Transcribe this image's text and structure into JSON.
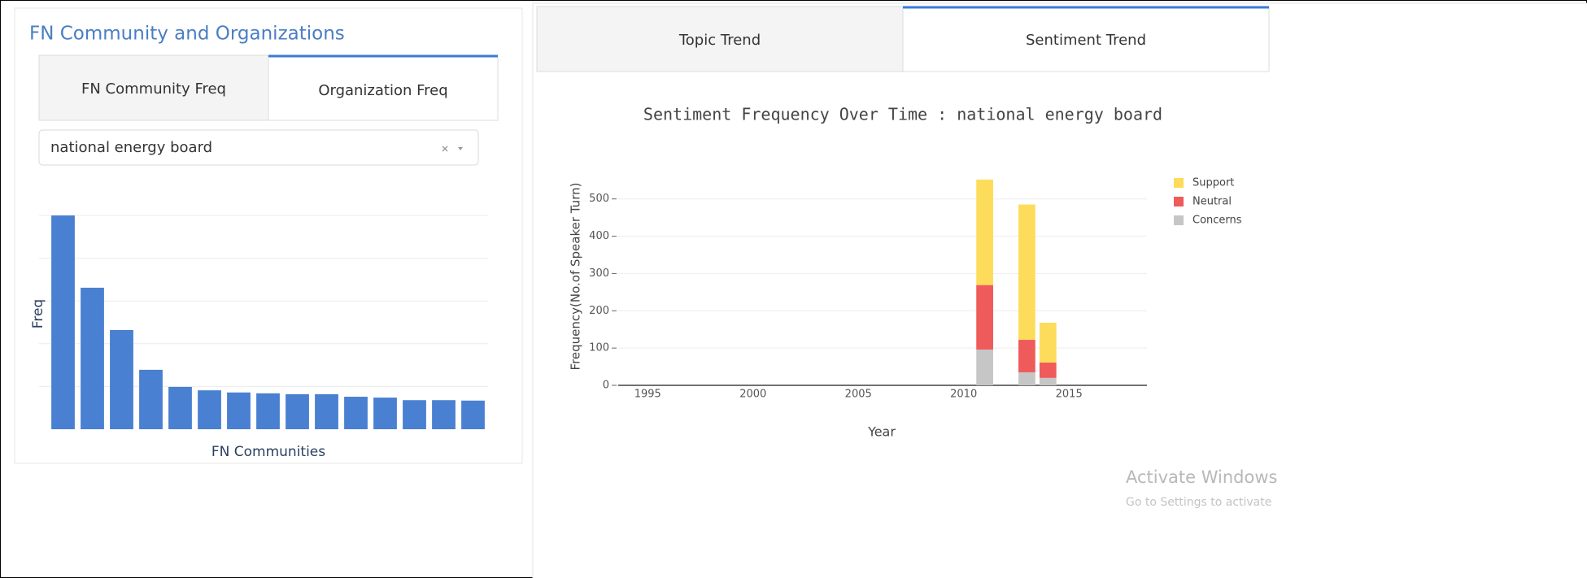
{
  "left_panel": {
    "title": "FN Community and Organizations",
    "tabs": [
      "FN Community Freq",
      "Organization Freq"
    ],
    "dropdown": {
      "value": "national energy board"
    }
  },
  "right_panel": {
    "tabs": [
      "Topic Trend",
      "Sentiment Trend"
    ]
  },
  "watermark": {
    "title": "Activate Windows",
    "subtitle": "Go to Settings to activate"
  },
  "chart_data": [
    {
      "type": "bar",
      "xlabel": "FN Communities",
      "ylabel": "Freq",
      "values": [
        5.0,
        3.31,
        2.32,
        1.39,
        0.99,
        0.91,
        0.86,
        0.84,
        0.82,
        0.82,
        0.76,
        0.74,
        0.68,
        0.68,
        0.67
      ],
      "color": "#4a80d1",
      "ylim": [
        0,
        5.2
      ],
      "yticks": [
        1,
        2,
        3,
        4,
        5
      ],
      "grid": true,
      "tick_labels": false
    },
    {
      "type": "stacked-bar",
      "title": "Sentiment Frequency Over Time : national energy board",
      "xlabel": "Year",
      "ylabel": "Frequency(No.of Speaker Turn)",
      "x": [
        2011,
        2013,
        2014
      ],
      "series": [
        {
          "name": "Support",
          "color": "#fddc5c",
          "values": [
            283,
            363,
            107
          ]
        },
        {
          "name": "Neutral",
          "color": "#ef5a5a",
          "values": [
            173,
            87,
            41
          ]
        },
        {
          "name": "Concerns",
          "color": "#c6c6c6",
          "values": [
            96,
            35,
            20
          ]
        }
      ],
      "xlim": [
        1993.6,
        2018.7
      ],
      "xticks": [
        1995,
        2000,
        2005,
        2010,
        2015
      ],
      "ylim": [
        0,
        580
      ],
      "yticks": [
        0,
        100,
        200,
        300,
        400,
        500
      ],
      "grid": true,
      "legend": "top-right"
    }
  ]
}
